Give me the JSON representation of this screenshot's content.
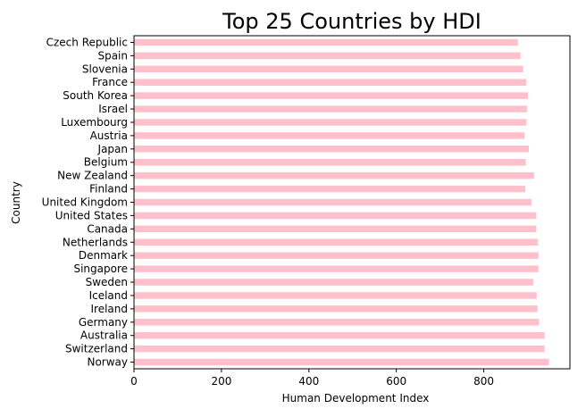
{
  "chart_data": {
    "type": "bar",
    "orientation": "horizontal",
    "title": "Top 25 Countries by HDI",
    "xlabel": "Human Development Index",
    "ylabel": "Country",
    "xlim": [
      0,
      997
    ],
    "xticks": [
      0,
      200,
      400,
      600,
      800
    ],
    "grid": false,
    "legend": "none",
    "bar_color": "#ffc0cb",
    "categories": [
      "Norway",
      "Switzerland",
      "Australia",
      "Germany",
      "Ireland",
      "Iceland",
      "Sweden",
      "Singapore",
      "Denmark",
      "Netherlands",
      "Canada",
      "United States",
      "United Kingdom",
      "Finland",
      "New Zealand",
      "Belgium",
      "Japan",
      "Austria",
      "Luxembourg",
      "Israel",
      "South Korea",
      "France",
      "Slovenia",
      "Spain",
      "Czech Republic"
    ],
    "values": [
      949,
      939,
      939,
      926,
      923,
      921,
      913,
      925,
      925,
      924,
      920,
      920,
      909,
      895,
      915,
      896,
      903,
      893,
      898,
      899,
      901,
      897,
      890,
      884,
      878
    ]
  }
}
